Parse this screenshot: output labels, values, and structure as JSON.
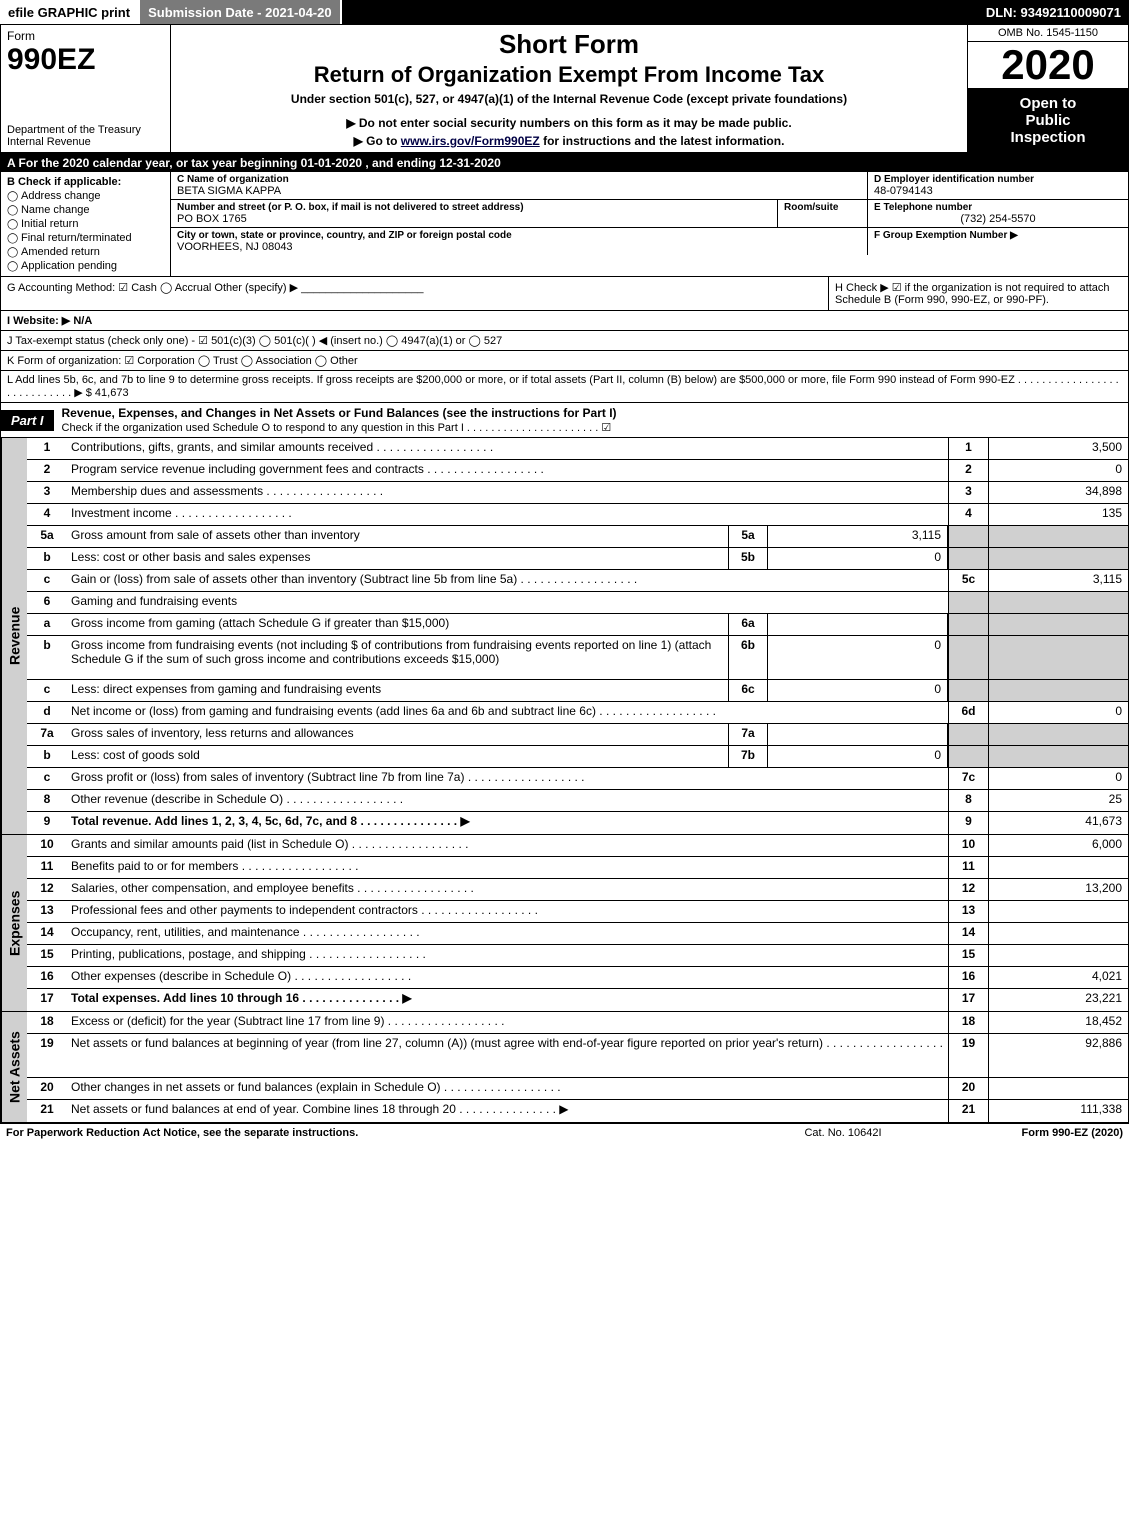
{
  "top_bar": {
    "efile": "efile GRAPHIC print",
    "submission": "Submission Date - 2021-04-20",
    "dln": "DLN: 93492110009071"
  },
  "header": {
    "form_word": "Form",
    "form_number": "990EZ",
    "dept": "Department of the Treasury Internal Revenue",
    "title1": "Short Form",
    "title2": "Return of Organization Exempt From Income Tax",
    "sub1": "Under section 501(c), 527, or 4947(a)(1) of the Internal Revenue Code (except private foundations)",
    "sub2": "▶ Do not enter social security numbers on this form as it may be made public.",
    "sub3_pre": "▶ Go to ",
    "sub3_link": "www.irs.gov/Form990EZ",
    "sub3_post": " for instructions and the latest information.",
    "omb": "OMB No. 1545-1150",
    "year": "2020",
    "inspect1": "Open to",
    "inspect2": "Public",
    "inspect3": "Inspection"
  },
  "row_a": "A For the 2020 calendar year, or tax year beginning 01-01-2020 , and ending 12-31-2020",
  "box_b": {
    "header": "B Check if applicable:",
    "opts": [
      "Address change",
      "Name change",
      "Initial return",
      "Final return/terminated",
      "Amended return",
      "Application pending"
    ]
  },
  "box_c": {
    "c_lbl": "C Name of organization",
    "c_val": "BETA SIGMA KAPPA",
    "addr_lbl": "Number and street (or P. O. box, if mail is not delivered to street address)",
    "addr_val": "PO BOX 1765",
    "room_lbl": "Room/suite",
    "city_lbl": "City or town, state or province, country, and ZIP or foreign postal code",
    "city_val": "VOORHEES, NJ  08043"
  },
  "box_def": {
    "d_lbl": "D Employer identification number",
    "d_val": "48-0794143",
    "e_lbl": "E Telephone number",
    "e_val": "(732) 254-5570",
    "f_lbl": "F Group Exemption Number ▶"
  },
  "row_g": {
    "left": "G Accounting Method: ☑ Cash  ◯ Accrual  Other (specify) ▶ ____________________",
    "right": "H Check ▶ ☑ if the organization is not required to attach Schedule B (Form 990, 990-EZ, or 990-PF)."
  },
  "row_i": "I Website: ▶ N/A",
  "row_j": "J Tax-exempt status (check only one) - ☑ 501(c)(3)  ◯ 501(c)(  ) ◀ (insert no.)  ◯ 4947(a)(1) or  ◯ 527",
  "row_k": "K Form of organization: ☑ Corporation  ◯ Trust  ◯ Association  ◯ Other",
  "row_l": "L Add lines 5b, 6c, and 7b to line 9 to determine gross receipts. If gross receipts are $200,000 or more, or if total assets (Part II, column (B) below) are $500,000 or more, file Form 990 instead of Form 990-EZ . . . . . . . . . . . . . . . . . . . . . . . . . . . . ▶ $ 41,673",
  "part1": {
    "tag": "Part I",
    "title": "Revenue, Expenses, and Changes in Net Assets or Fund Balances (see the instructions for Part I)",
    "sub": "Check if the organization used Schedule O to respond to any question in this Part I . . . . . . . . . . . . . . . . . . . . . . ☑"
  },
  "revenue": {
    "side": "Revenue",
    "lines": [
      {
        "n": "1",
        "d": "Contributions, gifts, grants, and similar amounts received",
        "rn": "1",
        "rv": "3,500"
      },
      {
        "n": "2",
        "d": "Program service revenue including government fees and contracts",
        "rn": "2",
        "rv": "0"
      },
      {
        "n": "3",
        "d": "Membership dues and assessments",
        "rn": "3",
        "rv": "34,898"
      },
      {
        "n": "4",
        "d": "Investment income",
        "rn": "4",
        "rv": "135"
      },
      {
        "n": "5a",
        "d": "Gross amount from sale of assets other than inventory",
        "mn": "5a",
        "mv": "3,115",
        "shade": true
      },
      {
        "n": "b",
        "d": "Less: cost or other basis and sales expenses",
        "mn": "5b",
        "mv": "0",
        "shade": true
      },
      {
        "n": "c",
        "d": "Gain or (loss) from sale of assets other than inventory (Subtract line 5b from line 5a)",
        "rn": "5c",
        "rv": "3,115"
      },
      {
        "n": "6",
        "d": "Gaming and fundraising events",
        "shade": true,
        "noval": true
      },
      {
        "n": "a",
        "d": "Gross income from gaming (attach Schedule G if greater than $15,000)",
        "mn": "6a",
        "mv": "",
        "shade": true
      },
      {
        "n": "b",
        "d": "Gross income from fundraising events (not including $              of contributions from fundraising events reported on line 1) (attach Schedule G if the sum of such gross income and contributions exceeds $15,000)",
        "mn": "6b",
        "mv": "0",
        "shade": true,
        "tall": true
      },
      {
        "n": "c",
        "d": "Less: direct expenses from gaming and fundraising events",
        "mn": "6c",
        "mv": "0",
        "shade": true
      },
      {
        "n": "d",
        "d": "Net income or (loss) from gaming and fundraising events (add lines 6a and 6b and subtract line 6c)",
        "rn": "6d",
        "rv": "0"
      },
      {
        "n": "7a",
        "d": "Gross sales of inventory, less returns and allowances",
        "mn": "7a",
        "mv": "",
        "shade": true
      },
      {
        "n": "b",
        "d": "Less: cost of goods sold",
        "mn": "7b",
        "mv": "0",
        "shade": true
      },
      {
        "n": "c",
        "d": "Gross profit or (loss) from sales of inventory (Subtract line 7b from line 7a)",
        "rn": "7c",
        "rv": "0"
      },
      {
        "n": "8",
        "d": "Other revenue (describe in Schedule O)",
        "rn": "8",
        "rv": "25"
      },
      {
        "n": "9",
        "d": "Total revenue. Add lines 1, 2, 3, 4, 5c, 6d, 7c, and 8",
        "rn": "9",
        "rv": "41,673",
        "bold": true,
        "arrow": true
      }
    ]
  },
  "expenses": {
    "side": "Expenses",
    "lines": [
      {
        "n": "10",
        "d": "Grants and similar amounts paid (list in Schedule O)",
        "rn": "10",
        "rv": "6,000"
      },
      {
        "n": "11",
        "d": "Benefits paid to or for members",
        "rn": "11",
        "rv": ""
      },
      {
        "n": "12",
        "d": "Salaries, other compensation, and employee benefits",
        "rn": "12",
        "rv": "13,200"
      },
      {
        "n": "13",
        "d": "Professional fees and other payments to independent contractors",
        "rn": "13",
        "rv": ""
      },
      {
        "n": "14",
        "d": "Occupancy, rent, utilities, and maintenance",
        "rn": "14",
        "rv": ""
      },
      {
        "n": "15",
        "d": "Printing, publications, postage, and shipping",
        "rn": "15",
        "rv": ""
      },
      {
        "n": "16",
        "d": "Other expenses (describe in Schedule O)",
        "rn": "16",
        "rv": "4,021"
      },
      {
        "n": "17",
        "d": "Total expenses. Add lines 10 through 16",
        "rn": "17",
        "rv": "23,221",
        "bold": true,
        "arrow": true
      }
    ]
  },
  "netassets": {
    "side": "Net Assets",
    "lines": [
      {
        "n": "18",
        "d": "Excess or (deficit) for the year (Subtract line 17 from line 9)",
        "rn": "18",
        "rv": "18,452"
      },
      {
        "n": "19",
        "d": "Net assets or fund balances at beginning of year (from line 27, column (A)) (must agree with end-of-year figure reported on prior year's return)",
        "rn": "19",
        "rv": "92,886",
        "tall": true
      },
      {
        "n": "20",
        "d": "Other changes in net assets or fund balances (explain in Schedule O)",
        "rn": "20",
        "rv": ""
      },
      {
        "n": "21",
        "d": "Net assets or fund balances at end of year. Combine lines 18 through 20",
        "rn": "21",
        "rv": "111,338",
        "arrow": true
      }
    ]
  },
  "footer": {
    "f1": "For Paperwork Reduction Act Notice, see the separate instructions.",
    "f2": "Cat. No. 10642I",
    "f3": "Form 990-EZ (2020)"
  }
}
